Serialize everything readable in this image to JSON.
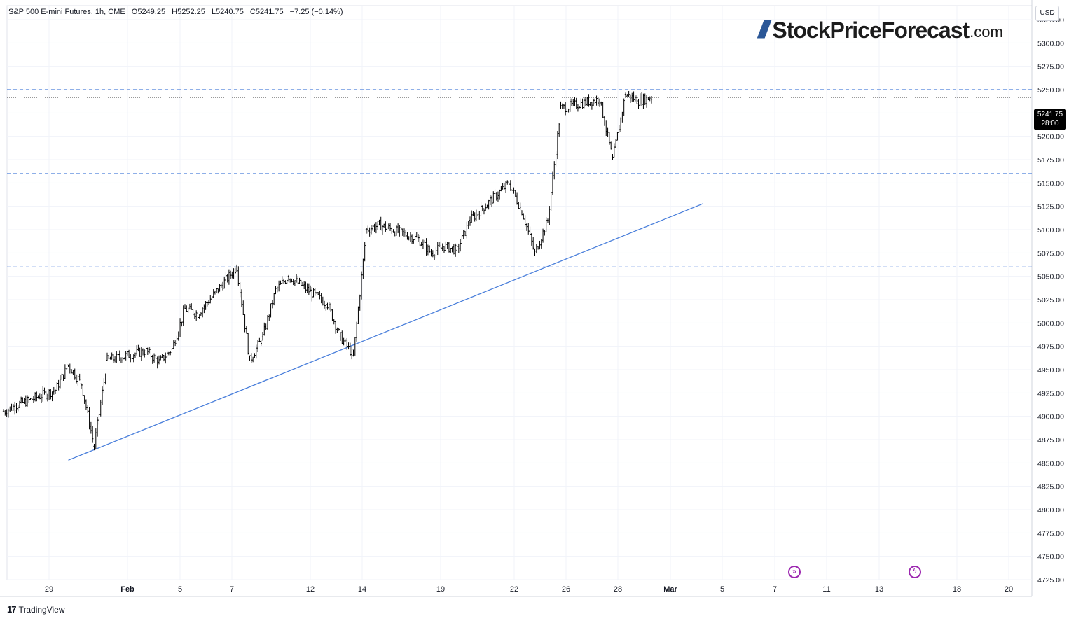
{
  "header": {
    "symbol": "S&P 500 E-mini Futures, 1h, CME",
    "open": "O5249.25",
    "high": "H5252.25",
    "low": "L5240.75",
    "close": "C5241.75",
    "change": "−7.25 (−0.14%)"
  },
  "logo": {
    "main": "StockPriceForecast",
    "domain": ".com",
    "slashes": "///"
  },
  "currency": "USD",
  "last_price": {
    "value": "5241.75",
    "countdown": "28:00"
  },
  "footer": {
    "brand": "TradingView",
    "brand_mark": "17"
  },
  "colors": {
    "candle": "#000000",
    "support_line": "#4a7fdb",
    "trendline": "#4a7fdb",
    "event_icon": "#9c27b0",
    "axis_text": "#131722"
  },
  "events": [
    {
      "icon": "dividend-split-icon",
      "glyph": "»",
      "date": "Mar 8"
    },
    {
      "icon": "earnings-lightning-icon",
      "glyph": "ϟ",
      "date": "Mar 14"
    }
  ],
  "chart_data": {
    "type": "line",
    "title": "",
    "xlabel": "",
    "ylabel": "",
    "x_ticks": [
      "29",
      "Feb",
      "5",
      "7",
      "12",
      "14",
      "19",
      "22",
      "26",
      "28",
      "Mar",
      "5",
      "7",
      "11",
      "13",
      "18",
      "20"
    ],
    "y_ticks": [
      "4725.00",
      "4750.00",
      "4775.00",
      "4800.00",
      "4825.00",
      "4850.00",
      "4875.00",
      "4900.00",
      "4925.00",
      "4950.00",
      "4975.00",
      "5000.00",
      "5025.00",
      "5050.00",
      "5075.00",
      "5100.00",
      "5125.00",
      "5150.00",
      "5175.00",
      "5200.00",
      "5225.00",
      "5250.00",
      "5275.00",
      "5300.00",
      "5325.00"
    ],
    "ylim": [
      4725,
      5340
    ],
    "grid": true,
    "series": [
      {
        "x": [
          "Jan 25",
          "Jan 26",
          "Jan 29",
          "Jan 30",
          "Jan 31",
          "Feb 1",
          "Feb 2",
          "Feb 5",
          "Feb 6",
          "Feb 7",
          "Feb 8",
          "Feb 9",
          "Feb 12",
          "Feb 13",
          "Feb 14",
          "Feb 15",
          "Feb 16",
          "Feb 19",
          "Feb 20",
          "Feb 21",
          "Feb 22",
          "Feb 23",
          "Feb 26",
          "Feb 27",
          "Feb 28",
          "Feb 29",
          "Mar 1",
          "Mar 4",
          "Mar 5",
          "Mar 6",
          "Mar 7",
          "Mar 8",
          "Mar 11",
          "Mar 12",
          "Mar 13",
          "Mar 14",
          "Mar 15"
        ],
        "values": [
          4905,
          4912,
          4928,
          4955,
          4935,
          4868,
          4960,
          4970,
          4958,
          4972,
          5015,
          5010,
          5060,
          4960,
          4985,
          5035,
          5050,
          5020,
          4985,
          4965,
          5100,
          5105,
          5090,
          5075,
          5082,
          5078,
          5110,
          5150,
          5120,
          5075,
          5110,
          5230,
          5240,
          5175,
          5245,
          5238,
          5242
        ]
      }
    ],
    "support_levels": [
      5250,
      5160,
      5060
    ],
    "trendline": {
      "start": {
        "x": "Jan 30",
        "y": 4853
      },
      "end": {
        "x": "Mar 19",
        "y": 5128
      }
    }
  }
}
